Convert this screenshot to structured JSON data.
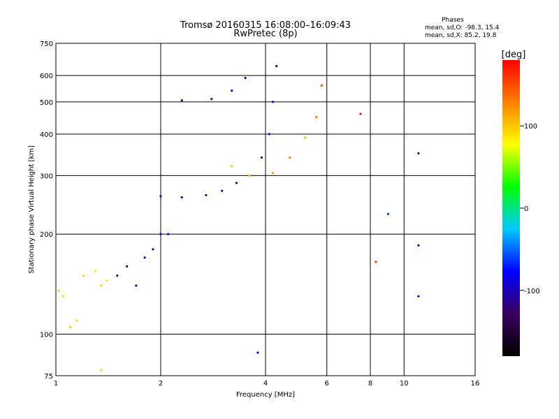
{
  "chart_data": {
    "type": "scatter",
    "title": "Tromsø 20160315 16:08:00–16:09:43",
    "subtitle": "RwPretec (8p)",
    "xlabel": "Frequency [MHz]",
    "ylabel": "Stationary phase Virtual Height [km]",
    "x_scale": "log",
    "y_scale": "log",
    "xlim": [
      1,
      16
    ],
    "ylim": [
      75,
      750
    ],
    "x_ticks": [
      1,
      2,
      4,
      6,
      8,
      10,
      16
    ],
    "y_ticks": [
      75,
      100,
      200,
      300,
      400,
      500,
      600,
      750
    ],
    "x_gridlines": [
      2,
      4,
      6,
      8,
      10
    ],
    "y_gridlines": [
      100,
      200,
      300,
      400,
      500,
      600
    ],
    "grid": true,
    "stats_header": "Phases",
    "stats_o": "mean, sd,O: -98.3, 15.4",
    "stats_x": "mean, sd,X:  85.2, 19.8",
    "colorbar": {
      "label": "[deg]",
      "ticks": [
        -100,
        0,
        100
      ],
      "range": [
        -180,
        180
      ],
      "colors": [
        "#000000",
        "#3a0060",
        "#0000ff",
        "#00c8ff",
        "#00ff00",
        "#ffff00",
        "#ff8000",
        "#ff0000"
      ]
    },
    "series": [
      {
        "values": [
          {
            "x": 1.02,
            "y": 135,
            "phase": 95
          },
          {
            "x": 1.05,
            "y": 130,
            "phase": 90
          },
          {
            "x": 1.1,
            "y": 105,
            "phase": 95
          },
          {
            "x": 1.15,
            "y": 110,
            "phase": 90
          },
          {
            "x": 1.2,
            "y": 150,
            "phase": 95
          },
          {
            "x": 1.3,
            "y": 155,
            "phase": 90
          },
          {
            "x": 1.35,
            "y": 140,
            "phase": 95
          },
          {
            "x": 1.4,
            "y": 145,
            "phase": 90
          },
          {
            "x": 1.5,
            "y": 150,
            "phase": -100
          },
          {
            "x": 1.6,
            "y": 160,
            "phase": -110
          },
          {
            "x": 1.7,
            "y": 140,
            "phase": -100
          },
          {
            "x": 1.8,
            "y": 170,
            "phase": -105
          },
          {
            "x": 1.9,
            "y": 180,
            "phase": -100
          },
          {
            "x": 2.0,
            "y": 200,
            "phase": -110
          },
          {
            "x": 2.1,
            "y": 200,
            "phase": -100
          },
          {
            "x": 2.0,
            "y": 260,
            "phase": -100
          },
          {
            "x": 2.3,
            "y": 258,
            "phase": -105
          },
          {
            "x": 2.7,
            "y": 262,
            "phase": -100
          },
          {
            "x": 3.0,
            "y": 270,
            "phase": -110
          },
          {
            "x": 3.3,
            "y": 285,
            "phase": -100
          },
          {
            "x": 3.6,
            "y": 300,
            "phase": -100
          },
          {
            "x": 3.9,
            "y": 340,
            "phase": -110
          },
          {
            "x": 4.1,
            "y": 400,
            "phase": -100
          },
          {
            "x": 4.2,
            "y": 500,
            "phase": -100
          },
          {
            "x": 4.3,
            "y": 640,
            "phase": -110
          },
          {
            "x": 2.3,
            "y": 505,
            "phase": -100
          },
          {
            "x": 2.8,
            "y": 510,
            "phase": -105
          },
          {
            "x": 3.2,
            "y": 540,
            "phase": -100
          },
          {
            "x": 3.5,
            "y": 590,
            "phase": -100
          },
          {
            "x": 3.2,
            "y": 320,
            "phase": 100
          },
          {
            "x": 3.6,
            "y": 300,
            "phase": 95
          },
          {
            "x": 4.2,
            "y": 305,
            "phase": 120
          },
          {
            "x": 4.7,
            "y": 340,
            "phase": 135
          },
          {
            "x": 5.2,
            "y": 390,
            "phase": 110
          },
          {
            "x": 5.6,
            "y": 450,
            "phase": 130
          },
          {
            "x": 5.8,
            "y": 560,
            "phase": 150
          },
          {
            "x": 7.5,
            "y": 460,
            "phase": 180
          },
          {
            "x": 11.0,
            "y": 350,
            "phase": -100
          },
          {
            "x": 11.0,
            "y": 185,
            "phase": -90
          },
          {
            "x": 8.3,
            "y": 165,
            "phase": 160
          },
          {
            "x": 9.0,
            "y": 230,
            "phase": -60
          },
          {
            "x": 11.0,
            "y": 130,
            "phase": -100
          },
          {
            "x": 3.8,
            "y": 88,
            "phase": -80
          },
          {
            "x": 1.35,
            "y": 78,
            "phase": 60
          }
        ]
      }
    ]
  }
}
